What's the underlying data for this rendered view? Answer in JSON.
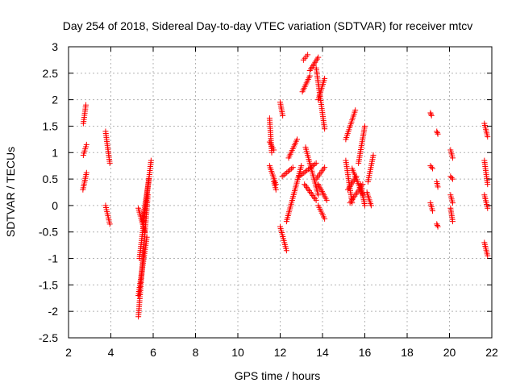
{
  "chart_data": {
    "type": "scatter",
    "title": "Day 254 of 2018, Sidereal Day-to-day VTEC variation (SDTVAR) for receiver mtcv",
    "xlabel": "GPS time / hours",
    "ylabel": "SDTVAR / TECUs",
    "xlim": [
      2,
      22
    ],
    "ylim": [
      -2.5,
      3
    ],
    "xticks": [
      2,
      4,
      6,
      8,
      10,
      12,
      14,
      16,
      18,
      20,
      22
    ],
    "xtick_labels": [
      "2",
      "4",
      "6",
      "8",
      "10",
      "12",
      "14",
      "16",
      "18",
      "20",
      "22"
    ],
    "yticks": [
      -2.5,
      -2,
      -1.5,
      -1,
      -0.5,
      0,
      0.5,
      1,
      1.5,
      2,
      2.5,
      3
    ],
    "ytick_labels": [
      "-2.5",
      "-2",
      "-1.5",
      "-1",
      "-0.5",
      "0",
      "0.5",
      "1",
      "1.5",
      "2",
      "2.5",
      "3"
    ],
    "grid": true,
    "marker": "+",
    "color": "#ff0000",
    "tracks": [
      [
        [
          2.7,
          1.55
        ],
        [
          2.82,
          1.9
        ]
      ],
      [
        [
          2.7,
          0.95
        ],
        [
          2.85,
          1.15
        ]
      ],
      [
        [
          2.68,
          0.3
        ],
        [
          2.85,
          0.62
        ]
      ],
      [
        [
          3.75,
          1.4
        ],
        [
          3.95,
          0.8
        ]
      ],
      [
        [
          3.75,
          0.0
        ],
        [
          3.95,
          -0.35
        ]
      ],
      [
        [
          5.3,
          -2.1
        ],
        [
          5.75,
          0.2
        ]
      ],
      [
        [
          5.3,
          -1.7
        ],
        [
          5.7,
          -0.6
        ]
      ],
      [
        [
          5.35,
          -1.0
        ],
        [
          5.9,
          0.85
        ]
      ],
      [
        [
          5.3,
          -0.05
        ],
        [
          5.6,
          -0.5
        ]
      ],
      [
        [
          5.5,
          -0.3
        ],
        [
          5.8,
          0.5
        ]
      ],
      [
        [
          11.5,
          1.65
        ],
        [
          11.6,
          1.0
        ]
      ],
      [
        [
          11.5,
          1.2
        ],
        [
          11.7,
          1.05
        ]
      ],
      [
        [
          11.5,
          0.75
        ],
        [
          11.8,
          0.4
        ]
      ],
      [
        [
          11.7,
          0.45
        ],
        [
          11.8,
          0.3
        ]
      ],
      [
        [
          12.0,
          1.95
        ],
        [
          12.12,
          1.7
        ]
      ],
      [
        [
          12.0,
          -0.4
        ],
        [
          12.3,
          -0.85
        ]
      ],
      [
        [
          12.1,
          0.55
        ],
        [
          12.6,
          0.72
        ]
      ],
      [
        [
          12.3,
          -0.3
        ],
        [
          13.0,
          0.75
        ]
      ],
      [
        [
          12.4,
          0.9
        ],
        [
          12.8,
          1.25
        ]
      ],
      [
        [
          12.9,
          0.55
        ],
        [
          13.7,
          0.8
        ]
      ],
      [
        [
          13.05,
          2.15
        ],
        [
          13.4,
          2.45
        ]
      ],
      [
        [
          13.1,
          2.75
        ],
        [
          13.3,
          2.85
        ]
      ],
      [
        [
          13.15,
          0.4
        ],
        [
          13.7,
          0.1
        ]
      ],
      [
        [
          13.2,
          1.1
        ],
        [
          13.8,
          0.2
        ]
      ],
      [
        [
          13.4,
          2.55
        ],
        [
          13.8,
          2.8
        ]
      ],
      [
        [
          13.7,
          2.6
        ],
        [
          14.1,
          1.45
        ]
      ],
      [
        [
          13.8,
          2.0
        ],
        [
          14.1,
          2.4
        ]
      ],
      [
        [
          13.8,
          0.4
        ],
        [
          14.2,
          0.1
        ]
      ],
      [
        [
          13.8,
          0.0
        ],
        [
          14.1,
          -0.25
        ]
      ],
      [
        [
          13.7,
          0.5
        ],
        [
          14.1,
          0.72
        ]
      ],
      [
        [
          15.1,
          0.85
        ],
        [
          15.4,
          0.05
        ]
      ],
      [
        [
          15.1,
          1.25
        ],
        [
          15.55,
          1.8
        ]
      ],
      [
        [
          15.2,
          0.3
        ],
        [
          15.6,
          0.55
        ]
      ],
      [
        [
          15.3,
          0.05
        ],
        [
          15.9,
          0.4
        ]
      ],
      [
        [
          15.4,
          0.7
        ],
        [
          15.9,
          0.2
        ]
      ],
      [
        [
          15.7,
          0.8
        ],
        [
          16.0,
          1.5
        ]
      ],
      [
        [
          15.8,
          0.4
        ],
        [
          16.0,
          0.0
        ]
      ],
      [
        [
          16.15,
          0.45
        ],
        [
          16.4,
          0.95
        ]
      ],
      [
        [
          16.1,
          0.25
        ],
        [
          16.3,
          0.0
        ]
      ],
      [
        [
          19.1,
          1.75
        ],
        [
          19.15,
          1.7
        ]
      ],
      [
        [
          19.1,
          0.75
        ],
        [
          19.2,
          0.7
        ]
      ],
      [
        [
          19.1,
          0.05
        ],
        [
          19.2,
          -0.1
        ]
      ],
      [
        [
          19.4,
          1.4
        ],
        [
          19.45,
          1.35
        ]
      ],
      [
        [
          19.4,
          0.45
        ],
        [
          19.45,
          0.35
        ]
      ],
      [
        [
          19.4,
          -0.35
        ],
        [
          19.45,
          -0.4
        ]
      ],
      [
        [
          20.05,
          1.05
        ],
        [
          20.15,
          0.9
        ]
      ],
      [
        [
          20.05,
          0.55
        ],
        [
          20.15,
          0.5
        ]
      ],
      [
        [
          20.05,
          0.2
        ],
        [
          20.15,
          0.05
        ]
      ],
      [
        [
          20.05,
          -0.05
        ],
        [
          20.15,
          -0.3
        ]
      ],
      [
        [
          21.65,
          1.55
        ],
        [
          21.8,
          1.3
        ]
      ],
      [
        [
          21.65,
          0.85
        ],
        [
          21.8,
          0.4
        ]
      ],
      [
        [
          21.65,
          0.2
        ],
        [
          21.8,
          -0.05
        ]
      ],
      [
        [
          21.65,
          -0.7
        ],
        [
          21.8,
          -0.95
        ]
      ]
    ]
  }
}
